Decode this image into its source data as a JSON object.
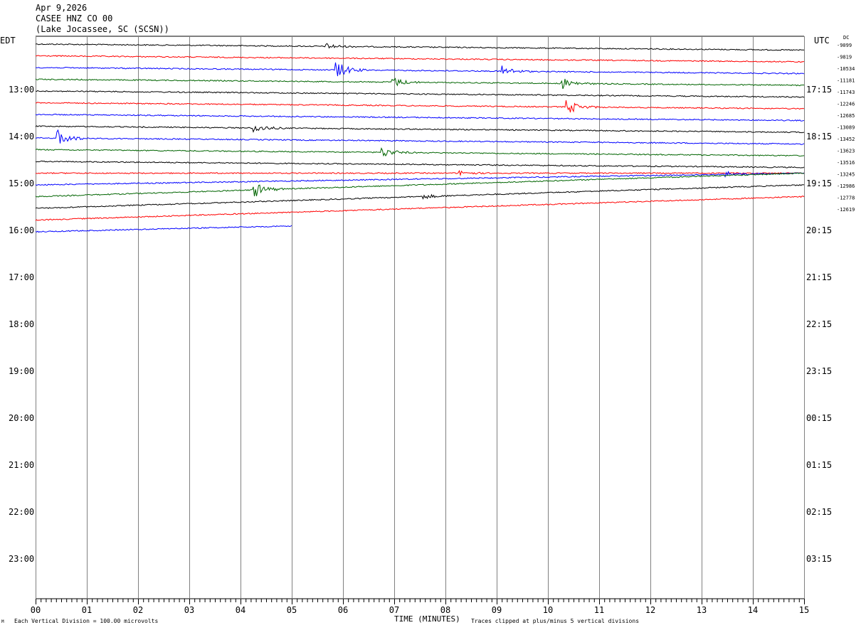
{
  "header": {
    "date": "Apr 9,2026",
    "station": "CASEE HNZ CO 00",
    "location": "(Lake Jocassee, SC (SCSN))"
  },
  "left_zone": "EDT",
  "right_zone": "UTC",
  "dc_label": "DC",
  "footer": {
    "scale_note": "Each Vertical Division =  100.00 microvolts",
    "clip_note": "Traces clipped at plus/minus 5 vertical divisions",
    "corner_mark": "M"
  },
  "colors": {
    "black": "#000000",
    "red": "#ff0000",
    "blue": "#0000ff",
    "green": "#006400",
    "grid": "#808080"
  },
  "chart_data": {
    "type": "line",
    "title": "",
    "xlabel": "TIME (MINUTES)",
    "ylabel": "",
    "xlim": [
      0,
      15
    ],
    "x_ticks": [
      "00",
      "01",
      "02",
      "03",
      "04",
      "05",
      "06",
      "07",
      "08",
      "09",
      "10",
      "11",
      "12",
      "13",
      "14",
      "15"
    ],
    "left_hour_labels": [
      "13:00",
      "14:00",
      "15:00",
      "16:00",
      "17:00",
      "18:00",
      "19:00",
      "20:00",
      "21:00",
      "22:00",
      "23:00"
    ],
    "right_hour_labels": [
      "17:15",
      "18:15",
      "19:15",
      "20:15",
      "21:15",
      "22:15",
      "23:15",
      "00:15",
      "01:15",
      "02:15",
      "03:15"
    ],
    "grid": true,
    "series": [
      {
        "color": "black",
        "dc": "-9099",
        "y_start": 0,
        "y_end": 1,
        "end_minute": 15,
        "drift": 1,
        "events": [
          [
            5.7,
            1.2
          ]
        ]
      },
      {
        "color": "red",
        "dc": "-9819",
        "y_start": 1,
        "y_end": 2,
        "end_minute": 15,
        "drift": 1,
        "events": []
      },
      {
        "color": "blue",
        "dc": "-10534",
        "y_start": 2,
        "y_end": 3,
        "end_minute": 15,
        "drift": 1,
        "events": [
          [
            5.9,
            3.5
          ],
          [
            9.1,
            2.5
          ]
        ]
      },
      {
        "color": "green",
        "dc": "-11181",
        "y_start": 3,
        "y_end": 4,
        "end_minute": 15,
        "drift": 1,
        "events": [
          [
            7.0,
            2.0
          ],
          [
            10.3,
            2.5
          ]
        ]
      },
      {
        "color": "black",
        "dc": "-11743",
        "y_start": 4,
        "y_end": 5,
        "end_minute": 15,
        "drift": 1,
        "events": []
      },
      {
        "color": "red",
        "dc": "-12246",
        "y_start": 5,
        "y_end": 6,
        "end_minute": 15,
        "drift": 1,
        "events": [
          [
            10.4,
            3.0
          ]
        ]
      },
      {
        "color": "blue",
        "dc": "-12685",
        "y_start": 6,
        "y_end": 7,
        "end_minute": 15,
        "drift": 1,
        "events": []
      },
      {
        "color": "black",
        "dc": "-13089",
        "y_start": 7,
        "y_end": 8,
        "end_minute": 15,
        "drift": 1,
        "events": [
          [
            4.3,
            1.8
          ]
        ]
      },
      {
        "color": "blue",
        "dc": "-13452",
        "y_start": 8,
        "y_end": 9,
        "end_minute": 15,
        "drift": 1,
        "events": [
          [
            0.45,
            3.5
          ]
        ]
      },
      {
        "color": "green",
        "dc": "-13623",
        "y_start": 9,
        "y_end": 10,
        "end_minute": 15,
        "drift": 1,
        "events": [
          [
            6.8,
            2.0
          ]
        ]
      },
      {
        "color": "black",
        "dc": "-13516",
        "y_start": 10,
        "y_end": 11,
        "end_minute": 15,
        "drift": 1,
        "events": []
      },
      {
        "color": "red",
        "dc": "-13245",
        "y_start": 11,
        "y_end": 11,
        "end_minute": 15,
        "drift": 0,
        "events": [
          [
            8.3,
            1.0
          ]
        ]
      },
      {
        "color": "blue",
        "dc": "-12986",
        "y_start": 12,
        "y_end": 11,
        "end_minute": 15,
        "drift": -1,
        "events": [
          [
            13.5,
            1.2
          ]
        ]
      },
      {
        "color": "green",
        "dc": "-12778",
        "y_start": 13,
        "y_end": 11,
        "end_minute": 15,
        "drift": -1,
        "events": [
          [
            4.3,
            3.0
          ]
        ]
      },
      {
        "color": "black",
        "dc": "-12619",
        "y_start": 14,
        "y_end": 12,
        "end_minute": 15,
        "drift": -1,
        "events": [
          [
            7.6,
            1.0
          ]
        ]
      },
      {
        "color": "red",
        "dc": "",
        "y_start": 15,
        "y_end": 13,
        "end_minute": 15,
        "drift": -1,
        "events": []
      },
      {
        "color": "blue",
        "dc": "",
        "y_start": 16,
        "y_end": 15.5,
        "end_minute": 5,
        "drift": -1,
        "events": []
      }
    ]
  }
}
